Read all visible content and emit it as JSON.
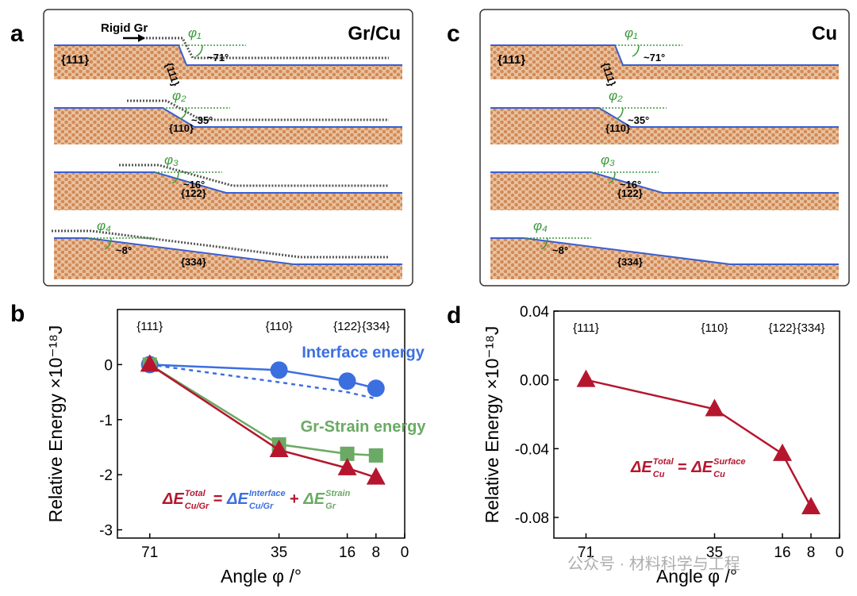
{
  "figure": {
    "panels": [
      {
        "letter": "a",
        "title": "Gr/Cu",
        "rigid_label": "Rigid Gr",
        "top_facet": "{111}",
        "rows": [
          {
            "step": "{111}",
            "phi": "φ₁",
            "angle": "~71°"
          },
          {
            "step": "{110}",
            "phi": "φ₂",
            "angle": "~35°"
          },
          {
            "step": "{122}",
            "phi": "φ₃",
            "angle": "~16°"
          },
          {
            "step": "{334}",
            "phi": "φ₄",
            "angle": "~8°"
          }
        ]
      },
      {
        "letter": "c",
        "title": "Cu",
        "top_facet": "{111}",
        "rows": [
          {
            "step": "{111}",
            "phi": "φ₁",
            "angle": "~71°"
          },
          {
            "step": "{110}",
            "phi": "φ₂",
            "angle": "~35°"
          },
          {
            "step": "{122}",
            "phi": "φ₃",
            "angle": "~16°"
          },
          {
            "step": "{334}",
            "phi": "φ₄",
            "angle": "~8°"
          }
        ]
      }
    ],
    "watermark": "公众号 · 材料科学与工程"
  },
  "chart_data": [
    {
      "type": "line",
      "letter": "b",
      "xlabel": "Angle φ /°",
      "ylabel": "Relative Energy ×10⁻¹⁸J",
      "x": [
        71,
        35,
        16,
        8
      ],
      "xlim": [
        80,
        0
      ],
      "xticks": [
        71,
        35,
        16,
        8,
        0
      ],
      "ylim": [
        -3.15,
        1
      ],
      "yticks": [
        0,
        -1,
        -2,
        -3
      ],
      "top_labels": [
        "{111}",
        "{110}",
        "{122}",
        "{334}"
      ],
      "series": [
        {
          "name": "Interface energy",
          "color": "#3b6fe0",
          "marker": "circle",
          "values": [
            0,
            -0.1,
            -0.3,
            -0.43
          ]
        },
        {
          "color": "#3b6fe0",
          "dashed": true,
          "values": [
            0,
            -0.32,
            -0.5,
            -0.62
          ]
        },
        {
          "name": "Gr-Strain energy",
          "color": "#6aaa64",
          "marker": "square",
          "values": [
            0,
            -1.45,
            -1.62,
            -1.65
          ]
        },
        {
          "color": "#b5162e",
          "marker": "triangle",
          "values": [
            0,
            -1.55,
            -1.88,
            -2.05
          ]
        }
      ],
      "equation": [
        {
          "text": "ΔE",
          "sup": "Total",
          "sub": "Cu/Gr",
          "color": "#b5162e"
        },
        {
          "text": "=",
          "color": "#b5162e"
        },
        {
          "text": "ΔE",
          "sup": "Interface",
          "sub": "Cu/Gr",
          "color": "#3b6fe0"
        },
        {
          "text": "+",
          "color": "#b5162e"
        },
        {
          "text": "ΔE",
          "sup": "Strain",
          "sub": "Gr",
          "color": "#6aaa64"
        }
      ]
    },
    {
      "type": "line",
      "letter": "d",
      "xlabel": "Angle φ /°",
      "ylabel": "Relative Energy ×10⁻¹⁸J",
      "x": [
        71,
        35,
        16,
        8
      ],
      "xlim": [
        80,
        0
      ],
      "xticks": [
        71,
        35,
        16,
        8,
        0
      ],
      "ylim": [
        -0.092,
        0.04
      ],
      "yticks": [
        0.04,
        {
          "value": 0,
          "label": "0.00"
        },
        -0.04,
        -0.08
      ],
      "top_labels": [
        "{111}",
        "{110}",
        "{122}",
        "{334}"
      ],
      "series": [
        {
          "color": "#b5162e",
          "marker": "triangle",
          "values": [
            0,
            -0.017,
            -0.043,
            -0.074
          ]
        }
      ],
      "equation": [
        {
          "text": "ΔE",
          "sup": "Total",
          "sub": "Cu",
          "color": "#b5162e"
        },
        {
          "text": "=",
          "color": "#b5162e"
        },
        {
          "text": "ΔE",
          "sup": "Surface",
          "sub": "Cu",
          "color": "#b5162e"
        }
      ]
    }
  ]
}
